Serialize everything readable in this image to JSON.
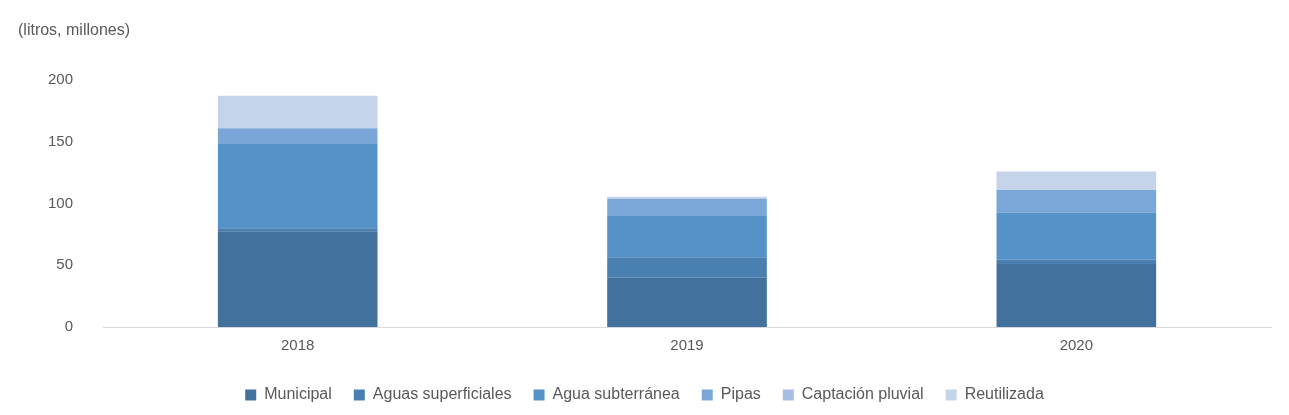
{
  "chart_data": {
    "type": "bar",
    "stacked": true,
    "title": "(litros, millones)",
    "categories": [
      "2018",
      "2019",
      "2020"
    ],
    "ylim": [
      0,
      200
    ],
    "yticks": [
      0,
      50,
      100,
      150,
      200
    ],
    "grid": false,
    "legend": "bottom",
    "series": [
      {
        "name": "Municipal",
        "color": "#41719c",
        "values": [
          77.5,
          40,
          51
        ]
      },
      {
        "name": "Aguas superficiales",
        "color": "#4a7fb1",
        "values": [
          2.5,
          16.5,
          3.5
        ]
      },
      {
        "name": "Agua subterránea",
        "color": "#5592c8",
        "values": [
          69,
          33.5,
          38
        ]
      },
      {
        "name": "Pipas",
        "color": "#7aa7d8",
        "values": [
          12,
          14,
          18.5
        ]
      },
      {
        "name": "Captación pluvial",
        "color": "#a4bfe3",
        "values": [
          0,
          0,
          0
        ]
      },
      {
        "name": "Reutilizada",
        "color": "#c5d4ea",
        "values": [
          26.5,
          1.5,
          15
        ]
      }
    ]
  }
}
